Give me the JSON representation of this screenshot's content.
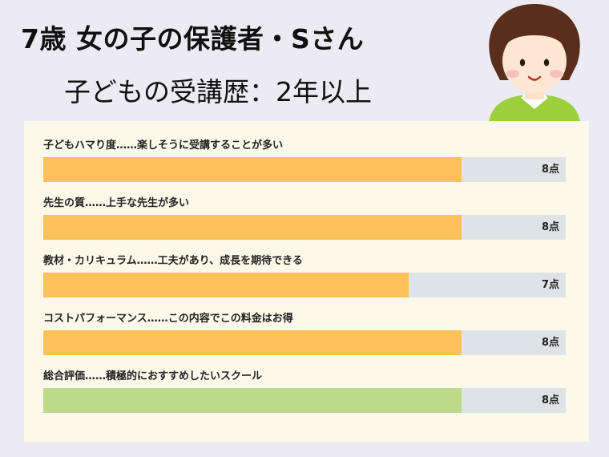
{
  "header": {
    "title": "7歳 女の子の保護者・Sさん",
    "subtitle": "子どもの受講歴：2年以上"
  },
  "colors": {
    "bar_orange": "#fcc158",
    "bar_green": "#bdd98a",
    "track": "#dde3e6"
  },
  "chart_data": {
    "type": "bar",
    "orientation": "horizontal",
    "xlim": [
      0,
      10
    ],
    "unit": "点",
    "categories": [
      "子どもハマり度……楽しそうに受講することが多い",
      "先生の質……上手な先生が多い",
      "教材・カリキュラム……工夫があり、成長を期待できる",
      "コストパフォーマンス……この内容でこの料金はお得",
      "総合評価……積極的におすすめしたいスクール"
    ],
    "values": [
      8,
      8,
      7,
      8,
      8
    ],
    "value_labels": [
      "8点",
      "8点",
      "7点",
      "8点",
      "8点"
    ]
  }
}
